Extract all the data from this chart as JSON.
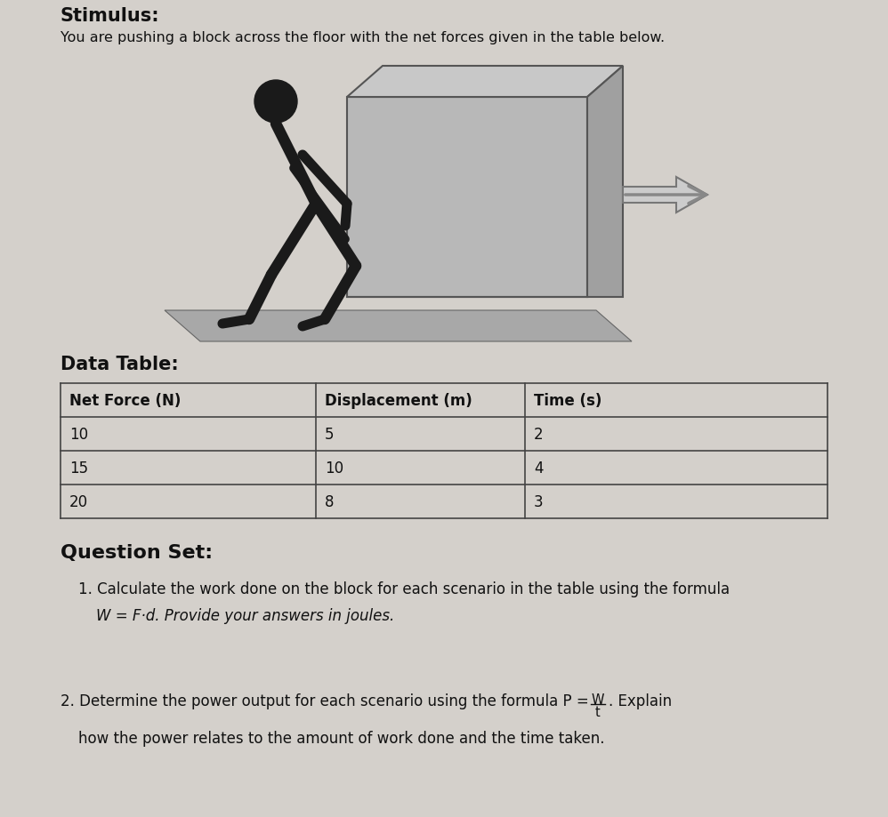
{
  "bg_color": "#d4d0cb",
  "title_text": "Stimulus:",
  "subtitle_text": "You are pushing a block across the floor with the net forces given in the table below.",
  "table_title": "Data Table:",
  "table_headers": [
    "Net Force (N)",
    "Displacement (m)",
    "Time (s)"
  ],
  "table_rows": [
    [
      "10",
      "5",
      "2"
    ],
    [
      "15",
      "10",
      "4"
    ],
    [
      "20",
      "8",
      "3"
    ]
  ],
  "question_title": "Question Set:",
  "text_color": "#111111",
  "table_border_color": "#444444",
  "title_fontsize": 15,
  "subtitle_fontsize": 11.5,
  "body_fontsize": 12,
  "bold_fontsize": 15
}
